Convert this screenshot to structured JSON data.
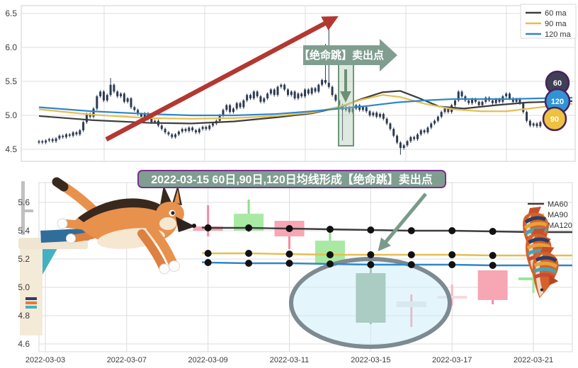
{
  "chart_data": [
    {
      "type": "candlestick",
      "panel": "top",
      "y_ticks": [
        6.5,
        6.0,
        5.5,
        5.0,
        4.5
      ],
      "ylim": [
        4.3,
        6.65
      ],
      "grid": true,
      "legend_position": "top-right",
      "legend": [
        {
          "label": "60 ma",
          "color": "#3d3d3d"
        },
        {
          "label": "90 ma",
          "color": "#e6bd4f"
        },
        {
          "label": "120 ma",
          "color": "#2f86c8"
        }
      ],
      "candle_color": "#2e3a52",
      "closes": [
        4.62,
        4.6,
        4.63,
        4.65,
        4.62,
        4.66,
        4.7,
        4.68,
        4.72,
        4.7,
        4.75,
        4.72,
        4.78,
        4.9,
        5.02,
        4.98,
        5.1,
        5.28,
        5.35,
        5.22,
        5.3,
        5.45,
        5.35,
        5.28,
        5.32,
        5.2,
        5.25,
        5.12,
        5.08,
        5.02,
        4.98,
        5.03,
        4.95,
        4.9,
        4.92,
        4.85,
        4.8,
        4.75,
        4.72,
        4.68,
        4.72,
        4.76,
        4.8,
        4.77,
        4.82,
        4.78,
        4.75,
        4.8,
        4.83,
        4.8,
        4.85,
        4.88,
        4.92,
        5.0,
        5.08,
        5.15,
        5.05,
        5.1,
        5.18,
        5.12,
        5.22,
        5.3,
        5.25,
        5.35,
        5.28,
        5.2,
        5.25,
        5.32,
        5.38,
        5.3,
        5.42,
        5.45,
        5.38,
        5.3,
        5.35,
        5.25,
        5.32,
        5.28,
        5.38,
        5.32,
        5.4,
        5.35,
        5.45,
        5.52,
        5.48,
        5.42,
        5.3,
        5.22,
        5.15,
        5.08,
        5.12,
        5.05,
        5.1,
        5.15,
        5.08,
        5.12,
        5.06,
        5.0,
        5.04,
        4.98,
        5.02,
        4.95,
        4.88,
        4.8,
        4.7,
        4.6,
        4.52,
        4.56,
        4.62,
        4.68,
        4.65,
        4.72,
        4.78,
        4.75,
        4.82,
        4.88,
        4.92,
        4.98,
        5.05,
        5.1,
        5.05,
        5.15,
        5.22,
        5.35,
        5.28,
        5.22,
        5.18,
        5.24,
        5.2,
        5.15,
        5.2,
        5.26,
        5.22,
        5.18,
        5.24,
        5.2,
        5.28,
        5.32,
        5.25,
        5.2,
        5.24,
        5.18,
        5.05,
        4.92,
        4.85,
        4.88,
        4.84,
        4.9,
        4.93
      ],
      "wick_overrides": {
        "21": {
          "h": 5.55
        },
        "84": {
          "h": 6.05
        },
        "85": {
          "h": 6.4
        },
        "89": {
          "l": 4.63
        },
        "106": {
          "l": 4.42
        }
      },
      "ma60": [
        [
          55,
          4.99
        ],
        [
          130,
          4.93
        ],
        [
          210,
          4.89
        ],
        [
          270,
          4.88
        ],
        [
          330,
          4.91
        ],
        [
          390,
          4.97
        ],
        [
          440,
          5.03
        ],
        [
          480,
          5.12
        ],
        [
          510,
          5.24
        ],
        [
          540,
          5.34
        ],
        [
          565,
          5.36
        ],
        [
          590,
          5.26
        ],
        [
          620,
          5.13
        ],
        [
          655,
          5.1
        ],
        [
          700,
          5.15
        ],
        [
          745,
          5.19
        ],
        [
          808,
          5.21
        ]
      ],
      "ma90": [
        [
          55,
          5.09
        ],
        [
          130,
          5.01
        ],
        [
          210,
          4.96
        ],
        [
          270,
          4.95
        ],
        [
          330,
          4.96
        ],
        [
          390,
          4.99
        ],
        [
          440,
          5.04
        ],
        [
          480,
          5.13
        ],
        [
          510,
          5.23
        ],
        [
          540,
          5.3
        ],
        [
          565,
          5.27
        ],
        [
          600,
          5.17
        ],
        [
          640,
          5.09
        ],
        [
          680,
          5.06
        ],
        [
          715,
          5.06
        ],
        [
          755,
          5.11
        ],
        [
          808,
          5.17
        ]
      ],
      "ma120": [
        [
          55,
          5.12
        ],
        [
          130,
          5.06
        ],
        [
          210,
          5.02
        ],
        [
          270,
          5.0
        ],
        [
          330,
          5.0
        ],
        [
          390,
          5.02
        ],
        [
          440,
          5.06
        ],
        [
          480,
          5.1
        ],
        [
          520,
          5.14
        ],
        [
          560,
          5.19
        ],
        [
          600,
          5.22
        ],
        [
          640,
          5.24
        ],
        [
          680,
          5.24
        ],
        [
          720,
          5.24
        ],
        [
          760,
          5.25
        ],
        [
          808,
          5.26
        ]
      ],
      "annotation": {
        "text": "【绝命跳】卖出点",
        "fill": "#7f9e90",
        "text_color": "#ffffff"
      },
      "trend_arrow_color": "#b23831",
      "highlight": {
        "stroke": "#6e9678",
        "fill": "rgba(170,200,172,0.4)",
        "arrow_color": "#6e8f77"
      },
      "badges": [
        {
          "label": "60",
          "color": "#3f3f55"
        },
        {
          "label": "120",
          "color": "#3193d6"
        },
        {
          "label": "90",
          "color": "#eec23f"
        }
      ],
      "badge_ring": "#47235e"
    },
    {
      "type": "candlestick",
      "panel": "bottom",
      "title": "2022-03-15 60日,90日,120日均线形成【绝命跳】卖出点",
      "y_ticks": [
        5.6,
        5.4,
        5.2,
        5.0,
        4.8,
        4.6
      ],
      "ylim": [
        4.55,
        5.72
      ],
      "grid": true,
      "x_labels": [
        "2022-03-03",
        "2022-03-07",
        "2022-03-09",
        "2022-03-11",
        "2022-03-15",
        "2022-03-17",
        "2022-03-21"
      ],
      "legend_position": "right",
      "legend": [
        {
          "label": "MA60",
          "color": "#3d3d3d"
        },
        {
          "label": "MA90",
          "color": "#e6bd4f"
        },
        {
          "label": "MA120",
          "color": "#2f86c8"
        }
      ],
      "candles": [
        {
          "slot": 4,
          "o": 5.4,
          "h": 5.58,
          "l": 5.36,
          "c": 5.43,
          "fill": "#f7a6b4",
          "wick": "#f28ca0"
        },
        {
          "slot": 5,
          "o": 5.52,
          "h": 5.62,
          "l": 5.39,
          "c": 5.4,
          "fill": "#a9e9a4",
          "wick": "#93dd90"
        },
        {
          "slot": 6,
          "o": 5.36,
          "h": 5.47,
          "l": 5.27,
          "c": 5.47,
          "fill": "#f7a6b4",
          "wick": "#f28ca0"
        },
        {
          "slot": 7,
          "o": 5.33,
          "h": 5.41,
          "l": 5.16,
          "c": 5.17,
          "fill": "#a9e9a4",
          "wick": "#93dd90"
        },
        {
          "slot": 8,
          "o": 5.1,
          "h": 5.17,
          "l": 4.74,
          "c": 4.75,
          "fill": "#7ea284",
          "wick": "#6f9376"
        },
        {
          "slot": 9,
          "o": 4.9,
          "h": 4.95,
          "l": 4.72,
          "c": 4.86,
          "fill": "#e3e3e3",
          "wick": "#f08a9b"
        },
        {
          "slot": 10,
          "o": 4.94,
          "h": 5.02,
          "l": 4.87,
          "c": 4.92,
          "fill": "#f8d9dd",
          "wick": "#f5b8c0"
        },
        {
          "slot": 11,
          "o": 4.91,
          "h": 5.12,
          "l": 4.88,
          "c": 5.12,
          "fill": "#f7a6b4",
          "wick": "#f28ca0"
        },
        {
          "slot": 12,
          "o": 5.05,
          "h": 5.12,
          "l": 4.96,
          "c": 5.07,
          "fill": "#98e898",
          "wick": "#98e898"
        }
      ],
      "ma_values": {
        "ma60": [
          5.42,
          5.42,
          5.415,
          5.41,
          5.405,
          5.4,
          5.4,
          5.395,
          5.39
        ],
        "ma90": [
          5.24,
          5.24,
          5.235,
          5.23,
          5.23,
          5.23,
          5.23,
          5.225,
          5.225
        ],
        "ma120": [
          5.175,
          5.17,
          5.17,
          5.165,
          5.16,
          5.16,
          5.16,
          5.155,
          5.155
        ]
      },
      "dot_color": "#111111",
      "ellipse": {
        "stroke": "#7e8a91",
        "fill": "rgba(206,238,247,0.55)"
      },
      "title_box": {
        "fill": "#7f9e90",
        "border": "#7b2f8e",
        "text_color": "#ffffff"
      },
      "pointer_arrow_color": "#7a9b8a"
    }
  ],
  "illustrations": {
    "dog": "german-shepherd-jumping",
    "platform": "diving-platform",
    "fish": "diving-fish-trio"
  }
}
